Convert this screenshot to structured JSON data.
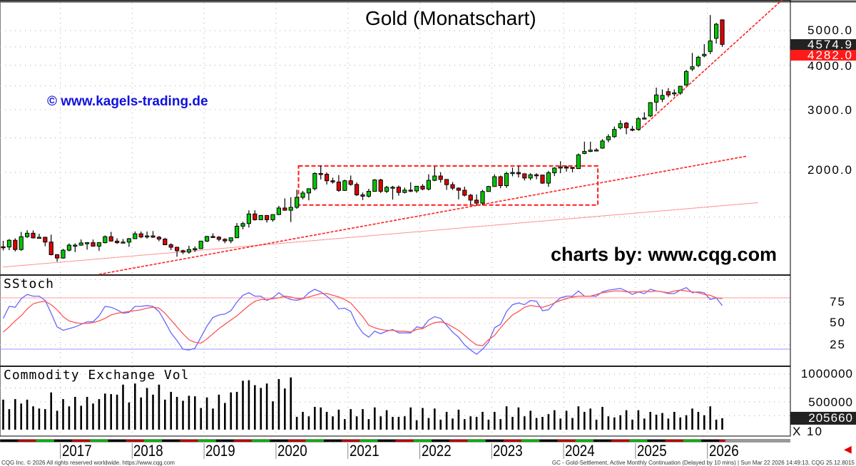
{
  "title": "Gold (Monatschart)",
  "watermark": "© www.kagels-trading.de",
  "credit": "charts by: www.cqg.com",
  "footer_left": "CQG Inc. © 2026 All rights reserved worldwide. https://www.cqg.com",
  "footer_right": "GC - Gold-Settlement, Active Monthly Continuation (Delayed by 10 mins) | Sun Mar 22 2026 14:49:13, CQG 25.12.8015",
  "colors": {
    "up": "#00c800",
    "down": "#e00000",
    "trend": "#ff2020",
    "stoch_k": "#6666ff",
    "stoch_d": "#ff5555",
    "last_price_box": "#222222",
    "trend_price_box": "#ff1a1a",
    "watermark": "#1010e0"
  },
  "chart_data": [
    {
      "type": "candlestick",
      "title": "Gold (Monatschart)",
      "interval": "monthly",
      "x_start": "2016-03",
      "x_tick_labels": [
        "2017",
        "2018",
        "2019",
        "2020",
        "2021",
        "2022",
        "2023",
        "2024",
        "2025",
        "2026"
      ],
      "y_scale": "log",
      "y_tick_labels": [
        "5000.0",
        "4000.0",
        "3000.0",
        "2000.0"
      ],
      "y_ticks": [
        5000,
        4000,
        3000,
        2000
      ],
      "last_price": "4574.9",
      "trendline_price": "4282.0",
      "grid": true,
      "ohlc": [
        [
          1237,
          1285,
          1208,
          1235
        ],
        [
          1235,
          1300,
          1210,
          1290
        ],
        [
          1290,
          1306,
          1200,
          1215
        ],
        [
          1215,
          1362,
          1205,
          1320
        ],
        [
          1320,
          1377,
          1310,
          1350
        ],
        [
          1350,
          1375,
          1305,
          1310
        ],
        [
          1310,
          1345,
          1305,
          1315
        ],
        [
          1315,
          1320,
          1241,
          1275
        ],
        [
          1275,
          1338,
          1170,
          1175
        ],
        [
          1175,
          1180,
          1123,
          1150
        ],
        [
          1150,
          1220,
          1145,
          1210
        ],
        [
          1210,
          1264,
          1200,
          1250
        ],
        [
          1250,
          1265,
          1195,
          1250
        ],
        [
          1250,
          1297,
          1245,
          1268
        ],
        [
          1268,
          1275,
          1214,
          1270
        ],
        [
          1270,
          1296,
          1238,
          1242
        ],
        [
          1242,
          1275,
          1205,
          1270
        ],
        [
          1270,
          1331,
          1264,
          1320
        ],
        [
          1320,
          1362,
          1281,
          1283
        ],
        [
          1283,
          1306,
          1260,
          1270
        ],
        [
          1270,
          1300,
          1264,
          1275
        ],
        [
          1275,
          1310,
          1236,
          1303
        ],
        [
          1303,
          1366,
          1302,
          1345
        ],
        [
          1345,
          1365,
          1307,
          1318
        ],
        [
          1318,
          1365,
          1303,
          1327
        ],
        [
          1327,
          1369,
          1310,
          1316
        ],
        [
          1316,
          1326,
          1282,
          1300
        ],
        [
          1300,
          1310,
          1250,
          1253
        ],
        [
          1253,
          1265,
          1211,
          1233
        ],
        [
          1233,
          1237,
          1160,
          1206
        ],
        [
          1206,
          1214,
          1180,
          1195
        ],
        [
          1195,
          1245,
          1182,
          1215
        ],
        [
          1215,
          1240,
          1196,
          1222
        ],
        [
          1222,
          1285,
          1221,
          1283
        ],
        [
          1283,
          1327,
          1275,
          1322
        ],
        [
          1322,
          1349,
          1310,
          1316
        ],
        [
          1316,
          1325,
          1281,
          1298
        ],
        [
          1298,
          1307,
          1266,
          1285
        ],
        [
          1285,
          1311,
          1266,
          1311
        ],
        [
          1311,
          1442,
          1310,
          1413
        ],
        [
          1413,
          1453,
          1385,
          1437
        ],
        [
          1437,
          1566,
          1400,
          1529
        ],
        [
          1529,
          1566,
          1465,
          1473
        ],
        [
          1473,
          1519,
          1470,
          1514
        ],
        [
          1514,
          1518,
          1446,
          1473
        ],
        [
          1473,
          1525,
          1455,
          1523
        ],
        [
          1523,
          1611,
          1518,
          1589
        ],
        [
          1589,
          1691,
          1562,
          1566
        ],
        [
          1566,
          1704,
          1451,
          1596
        ],
        [
          1596,
          1788,
          1580,
          1702
        ],
        [
          1702,
          1775,
          1680,
          1751
        ],
        [
          1751,
          1800,
          1670,
          1800
        ],
        [
          1800,
          2000,
          1780,
          1986
        ],
        [
          1986,
          2089,
          1911,
          1976
        ],
        [
          1976,
          2000,
          1849,
          1895
        ],
        [
          1895,
          1933,
          1860,
          1880
        ],
        [
          1880,
          1966,
          1764,
          1780
        ],
        [
          1780,
          1908,
          1774,
          1895
        ],
        [
          1895,
          1960,
          1836,
          1850
        ],
        [
          1850,
          1875,
          1717,
          1730
        ],
        [
          1730,
          1756,
          1673,
          1715
        ],
        [
          1715,
          1799,
          1700,
          1770
        ],
        [
          1770,
          1916,
          1765,
          1905
        ],
        [
          1905,
          1919,
          1750,
          1770
        ],
        [
          1770,
          1834,
          1750,
          1817
        ],
        [
          1817,
          1834,
          1678,
          1818
        ],
        [
          1818,
          1837,
          1721,
          1757
        ],
        [
          1757,
          1814,
          1746,
          1784
        ],
        [
          1784,
          1877,
          1760,
          1775
        ],
        [
          1775,
          1831,
          1753,
          1829
        ],
        [
          1829,
          1854,
          1781,
          1796
        ],
        [
          1796,
          1976,
          1780,
          1900
        ],
        [
          1900,
          2078,
          1890,
          1954
        ],
        [
          1954,
          2003,
          1872,
          1911
        ],
        [
          1911,
          1911,
          1786,
          1848
        ],
        [
          1848,
          1880,
          1785,
          1807
        ],
        [
          1807,
          1814,
          1680,
          1782
        ],
        [
          1782,
          1824,
          1712,
          1726
        ],
        [
          1726,
          1740,
          1622,
          1672
        ],
        [
          1672,
          1734,
          1619,
          1640
        ],
        [
          1640,
          1787,
          1618,
          1768
        ],
        [
          1768,
          1833,
          1765,
          1826
        ],
        [
          1826,
          1975,
          1825,
          1945
        ],
        [
          1945,
          1960,
          1805,
          1836
        ],
        [
          1836,
          2010,
          1810,
          1986
        ],
        [
          1986,
          2063,
          1950,
          1999
        ],
        [
          1999,
          2085,
          1935,
          1982
        ],
        [
          1982,
          1987,
          1900,
          1929
        ],
        [
          1929,
          1990,
          1902,
          1970
        ],
        [
          1970,
          1990,
          1913,
          1966
        ],
        [
          1966,
          1970,
          1858,
          1866
        ],
        [
          1866,
          2020,
          1823,
          1995
        ],
        [
          1995,
          2070,
          1953,
          2057
        ],
        [
          2057,
          2150,
          1990,
          2071
        ],
        [
          2071,
          2090,
          2010,
          2067
        ],
        [
          2067,
          2070,
          2001,
          2054
        ],
        [
          2050,
          2260,
          2045,
          2240
        ],
        [
          2260,
          2440,
          2250,
          2290
        ],
        [
          2290,
          2440,
          2280,
          2310
        ],
        [
          2310,
          2340,
          2290,
          2312
        ],
        [
          2340,
          2480,
          2330,
          2450
        ],
        [
          2470,
          2560,
          2430,
          2520
        ],
        [
          2520,
          2690,
          2500,
          2640
        ],
        [
          2670,
          2800,
          2640,
          2740
        ],
        [
          2750,
          2770,
          2560,
          2670
        ],
        [
          2645,
          2700,
          2610,
          2640
        ],
        [
          2640,
          2860,
          2625,
          2830
        ],
        [
          2835,
          2950,
          2830,
          2842
        ],
        [
          2880,
          3150,
          2860,
          3140
        ],
        [
          3150,
          3460,
          2970,
          3300
        ],
        [
          3210,
          3420,
          3150,
          3290
        ],
        [
          3370,
          3450,
          3250,
          3300
        ],
        [
          3340,
          3420,
          3270,
          3345
        ],
        [
          3340,
          3500,
          3300,
          3490
        ],
        [
          3520,
          3880,
          3500,
          3840
        ],
        [
          3900,
          4330,
          3850,
          3960
        ],
        [
          3990,
          4250,
          3950,
          4210
        ],
        [
          4250,
          4580,
          4210,
          4290
        ],
        [
          4370,
          5530,
          4300,
          4680
        ],
        [
          4760,
          5260,
          4600,
          5210
        ],
        [
          5360,
          5380,
          4500,
          4575
        ]
      ],
      "trendlines": [
        {
          "style": "dashed",
          "from": [
            "2017-07",
            1035
          ],
          "to": [
            "2026-07",
            2220
          ]
        },
        {
          "style": "dotted",
          "from": [
            "2016-03",
            1085
          ],
          "to": [
            "2026-09",
            1645
          ]
        },
        {
          "style": "dashed",
          "from": [
            "2025-01",
            2620
          ],
          "to": [
            "2027-01",
            6100
          ]
        }
      ],
      "range_box": {
        "from": "2020-05",
        "to": "2024-06",
        "low": 1620,
        "high": 2085
      }
    },
    {
      "type": "line",
      "title": "SStoch",
      "y_tick_labels": [
        "75",
        "50",
        "25"
      ],
      "y_ticks": [
        75,
        50,
        25
      ],
      "ylim": [
        0,
        100
      ],
      "levels": [
        {
          "value": 80,
          "color": "#ff9999"
        },
        {
          "value": 20,
          "color": "#9999ff"
        }
      ],
      "series": [
        {
          "key": "k",
          "values": [
            56,
            70,
            69,
            79,
            84,
            82,
            82,
            77,
            62,
            46,
            42,
            44,
            46,
            49,
            52,
            52,
            59,
            70,
            69,
            66,
            62,
            63,
            70,
            70,
            71,
            70,
            64,
            52,
            39,
            30,
            20,
            19,
            21,
            34,
            47,
            57,
            60,
            61,
            65,
            75,
            83,
            86,
            82,
            82,
            77,
            80,
            86,
            81,
            78,
            77,
            79,
            86,
            90,
            87,
            82,
            76,
            67,
            68,
            64,
            49,
            39,
            34,
            41,
            38,
            41,
            43,
            39,
            39,
            39,
            46,
            45,
            54,
            58,
            56,
            48,
            40,
            34,
            25,
            19,
            14,
            20,
            28,
            45,
            49,
            64,
            72,
            74,
            72,
            77,
            76,
            65,
            66,
            74,
            80,
            82,
            82,
            88,
            82,
            82,
            82,
            87,
            89,
            90,
            91,
            88,
            84,
            87,
            85,
            90,
            88,
            87,
            85,
            85,
            89,
            92,
            86,
            87,
            86,
            78,
            80,
            71
          ]
        },
        {
          "key": "d",
          "values": [
            40,
            46,
            53,
            59,
            67,
            73,
            75,
            76,
            72,
            66,
            58,
            53,
            51,
            50,
            50,
            51,
            53,
            56,
            60,
            62,
            63,
            64,
            65,
            66,
            68,
            69,
            68,
            62,
            54,
            46,
            38,
            31,
            28,
            27,
            32,
            38,
            44,
            49,
            54,
            59,
            65,
            71,
            76,
            78,
            78,
            79,
            80,
            82,
            81,
            79,
            79,
            81,
            83,
            85,
            85,
            83,
            81,
            78,
            74,
            66,
            58,
            48,
            45,
            43,
            42,
            42,
            41,
            41,
            40,
            43,
            44,
            48,
            51,
            52,
            50,
            46,
            42,
            36,
            30,
            25,
            24,
            31,
            36,
            45,
            53,
            60,
            64,
            69,
            71,
            70,
            69,
            71,
            74,
            77,
            79,
            81,
            82,
            82,
            82,
            84,
            86,
            87,
            88,
            88,
            87,
            87,
            87,
            88,
            87,
            88,
            87,
            86,
            88,
            89,
            88,
            87,
            86,
            84,
            83,
            80,
            79
          ]
        }
      ]
    },
    {
      "type": "bar",
      "title": "Commodity Exchange Vol",
      "y_tick_labels": [
        "1000000",
        "500000"
      ],
      "y_ticks": [
        1000000,
        500000
      ],
      "last_value": "205660",
      "multiplier_label": "X 10",
      "values": [
        540000,
        370000,
        550000,
        470000,
        540000,
        420000,
        380000,
        370000,
        670000,
        340000,
        550000,
        420000,
        590000,
        430000,
        590000,
        470000,
        550000,
        650000,
        640000,
        630000,
        810000,
        490000,
        830000,
        580000,
        750000,
        630000,
        810000,
        540000,
        680000,
        590000,
        520000,
        610000,
        600000,
        390000,
        580000,
        380000,
        630000,
        480000,
        670000,
        680000,
        880000,
        890000,
        800000,
        750000,
        830000,
        510000,
        910000,
        740000,
        940000,
        230000,
        320000,
        240000,
        410000,
        400000,
        320000,
        240000,
        360000,
        190000,
        370000,
        240000,
        370000,
        190000,
        400000,
        240000,
        350000,
        230000,
        230000,
        240000,
        400000,
        170000,
        390000,
        210000,
        380000,
        180000,
        320000,
        200000,
        360000,
        190000,
        240000,
        230000,
        320000,
        180000,
        320000,
        190000,
        420000,
        230000,
        400000,
        240000,
        340000,
        210000,
        230000,
        280000,
        350000,
        200000,
        340000,
        210000,
        420000,
        320000,
        380000,
        180000,
        410000,
        240000,
        220000,
        260000,
        350000,
        180000,
        350000,
        200000,
        320000,
        270000,
        300000,
        200000,
        320000,
        220000,
        260000,
        380000,
        320000,
        260000,
        420000,
        180000,
        205660
      ]
    }
  ]
}
